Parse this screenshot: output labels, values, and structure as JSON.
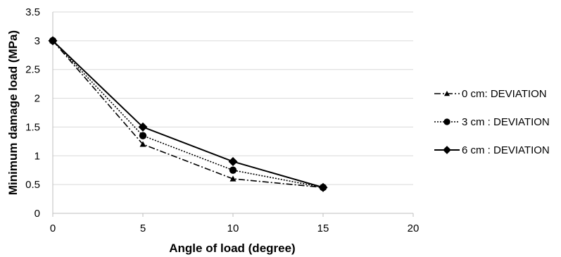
{
  "chart_data": {
    "type": "line",
    "title": "",
    "xlabel": "Angle of load (degree)",
    "ylabel": "Minimum damage load (MPa)",
    "xlim": [
      0,
      20
    ],
    "ylim": [
      0,
      3.5
    ],
    "xticks": [
      0,
      5,
      10,
      15,
      20
    ],
    "yticks": [
      0,
      0.5,
      1,
      1.5,
      2,
      2.5,
      3,
      3.5
    ],
    "xtick_labels": [
      "0",
      "5",
      "10",
      "15",
      "20"
    ],
    "ytick_labels": [
      "0",
      "0.5",
      "1",
      "1.5",
      "2",
      "2.5",
      "3",
      "3.5"
    ],
    "grid": "horizontal",
    "legend_position": "right",
    "series": [
      {
        "name": "0 cm: DEVIATION",
        "marker": "triangle",
        "line_style": "dash-dot",
        "color": "#000000",
        "x": [
          0,
          5,
          10,
          15
        ],
        "y": [
          3.0,
          1.2,
          0.6,
          0.45
        ]
      },
      {
        "name": "3 cm : DEVIATION",
        "marker": "circle",
        "line_style": "dotted",
        "color": "#000000",
        "x": [
          0,
          5,
          10,
          15
        ],
        "y": [
          3.0,
          1.35,
          0.75,
          0.45
        ]
      },
      {
        "name": "6 cm : DEVIATION",
        "marker": "diamond",
        "line_style": "solid",
        "color": "#000000",
        "x": [
          0,
          5,
          10,
          15
        ],
        "y": [
          3.0,
          1.5,
          0.9,
          0.45
        ]
      }
    ]
  }
}
